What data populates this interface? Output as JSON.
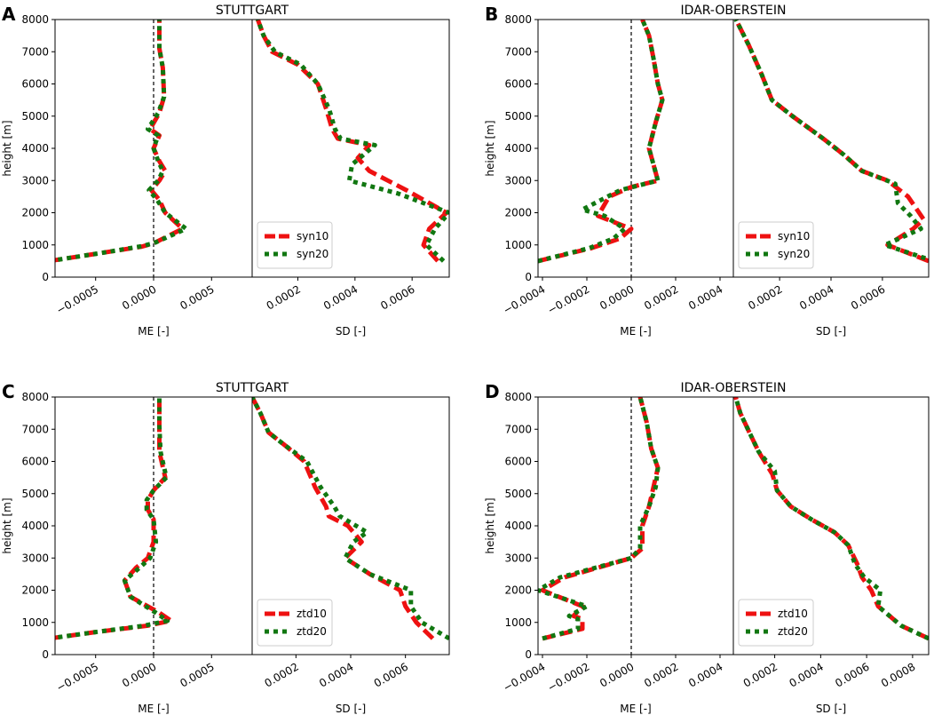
{
  "chart_data": [
    {
      "panel_letter": "A",
      "title": "STUTTGART",
      "ylabel": "height [m]",
      "ylim": [
        0,
        8000
      ],
      "yticks": [
        0,
        1000,
        2000,
        3000,
        4000,
        5000,
        6000,
        7000,
        8000
      ],
      "ytick_labels": [
        "0",
        "1000",
        "2000",
        "3000",
        "4000",
        "5000",
        "6000",
        "7000",
        "8000"
      ],
      "me": {
        "type": "line",
        "xlabel": "ME [-]",
        "xlim": [
          -0.00085,
          0.00085
        ],
        "xticks": [
          -0.0005,
          0.0,
          0.0005
        ],
        "xtick_labels": [
          "−0.0005",
          "0.0000",
          "0.0005"
        ],
        "zero_line": true,
        "series": [
          {
            "name": "syn10",
            "x": [
              -0.0009,
              -0.00045,
              -0.0001,
              0.0,
              0.00025,
              0.0001,
              5e-05,
              -2e-05,
              5e-05,
              0.0001,
              5e-05,
              0.0,
              5e-05,
              -3e-05,
              5e-05,
              9e-05,
              8e-05,
              5e-05,
              5e-05
            ],
            "y": [
              500,
              750,
              950,
              1050,
              1500,
              2000,
              2400,
              2700,
              3000,
              3300,
              3600,
              4000,
              4400,
              4600,
              5100,
              5600,
              6500,
              7100,
              8000
            ]
          },
          {
            "name": "syn20",
            "x": [
              -0.0009,
              -0.00045,
              -0.00012,
              0.0,
              0.00028,
              0.0001,
              3e-05,
              -4e-05,
              4e-05,
              8e-05,
              4e-05,
              0.0,
              4e-05,
              -5e-05,
              4e-05,
              9e-05,
              8e-05,
              5e-05,
              5e-05
            ],
            "y": [
              500,
              750,
              950,
              1050,
              1500,
              2000,
              2400,
              2700,
              3000,
              3300,
              3600,
              4000,
              4400,
              4600,
              5100,
              5600,
              6500,
              7100,
              8000
            ]
          }
        ]
      },
      "sd": {
        "type": "line",
        "xlabel": "SD [-]",
        "xlim": [
          4e-05,
          0.00073
        ],
        "xticks": [
          0.0002,
          0.0004,
          0.0006
        ],
        "xtick_labels": [
          "0.0002",
          "0.0004",
          "0.0006"
        ],
        "legend": "lower-left",
        "series": [
          {
            "name": "syn10",
            "x": [
              0.00069,
              0.00064,
              0.00066,
              0.00072,
              0.00058,
              0.00045,
              0.00041,
              0.00045,
              0.00034,
              0.00032,
              0.0003,
              0.00027,
              0.0002,
              0.00011,
              8e-05,
              6e-05
            ],
            "y": [
              500,
              1000,
              1500,
              2000,
              2700,
              3300,
              3700,
              4100,
              4300,
              4600,
              5200,
              6000,
              6600,
              7000,
              7500,
              8000
            ]
          },
          {
            "name": "syn20",
            "x": [
              0.00071,
              0.00065,
              0.00068,
              0.00073,
              0.00055,
              0.00038,
              0.00039,
              0.00047,
              0.00035,
              0.00033,
              0.00031,
              0.00027,
              0.00021,
              0.00012,
              8e-05,
              6e-05
            ],
            "y": [
              500,
              1000,
              1500,
              2000,
              2600,
              3000,
              3500,
              4100,
              4300,
              4600,
              5200,
              6000,
              6600,
              7000,
              7500,
              8000
            ]
          }
        ]
      }
    },
    {
      "panel_letter": "B",
      "title": "IDAR-OBERSTEIN",
      "ylabel": "height [m]",
      "ylim": [
        0,
        8000
      ],
      "yticks": [
        0,
        1000,
        2000,
        3000,
        4000,
        5000,
        6000,
        7000,
        8000
      ],
      "ytick_labels": [
        "0",
        "1000",
        "2000",
        "3000",
        "4000",
        "5000",
        "6000",
        "7000",
        "8000"
      ],
      "me": {
        "type": "line",
        "xlabel": "ME [-]",
        "xlim": [
          -0.00042,
          0.00046
        ],
        "xticks": [
          -0.0004,
          -0.0002,
          0.0,
          0.0002,
          0.0004
        ],
        "xtick_labels": [
          "−0.0004",
          "−0.0002",
          "0.0000",
          "0.0002",
          "0.0004"
        ],
        "zero_line": true,
        "series": [
          {
            "name": "syn10",
            "x": [
              -0.00042,
              -0.00018,
              -5e-05,
              0.0,
              -0.00015,
              -0.0001,
              0.0,
              0.00012,
              0.0001,
              8e-05,
              0.00011,
              0.00014,
              0.00012,
              0.0001,
              8e-05,
              5e-05
            ],
            "y": [
              500,
              900,
              1200,
              1500,
              1900,
              2500,
              2800,
              3000,
              3500,
              4000,
              4800,
              5500,
              6000,
              6800,
              7500,
              8000
            ]
          },
          {
            "name": "syn20",
            "x": [
              -0.00042,
              -0.00019,
              -8e-05,
              -3e-05,
              -0.00012,
              -0.00022,
              -5e-05,
              0.00012,
              0.0001,
              8e-05,
              0.00011,
              0.00014,
              0.00012,
              0.0001,
              8e-05,
              5e-05
            ],
            "y": [
              500,
              900,
              1200,
              1500,
              1900,
              2100,
              2700,
              3000,
              3500,
              4000,
              4800,
              5500,
              6000,
              6800,
              7500,
              8000
            ]
          }
        ]
      },
      "sd": {
        "type": "line",
        "xlabel": "SD [-]",
        "xlim": [
          2e-05,
          0.00078
        ],
        "xticks": [
          0.0002,
          0.0004,
          0.0006
        ],
        "xtick_labels": [
          "0.0002",
          "0.0004",
          "0.0006"
        ],
        "legend": "lower-left",
        "series": [
          {
            "name": "syn10",
            "x": [
              0.00078,
              0.00062,
              0.00072,
              0.00076,
              0.0007,
              0.00062,
              0.00052,
              0.00045,
              0.00037,
              0.00025,
              0.00017,
              0.00013,
              8e-05,
              3e-05
            ],
            "y": [
              500,
              1000,
              1500,
              1800,
              2500,
              3000,
              3300,
              3800,
              4300,
              5000,
              5500,
              6300,
              7200,
              8000
            ]
          },
          {
            "name": "syn20",
            "x": [
              0.0008,
              0.00061,
              0.00075,
              0.00071,
              0.00066,
              0.00065,
              0.00052,
              0.00045,
              0.00037,
              0.00025,
              0.00017,
              0.00013,
              8e-05,
              3e-05
            ],
            "y": [
              500,
              1000,
              1500,
              1900,
              2300,
              2900,
              3300,
              3800,
              4300,
              5000,
              5500,
              6300,
              7200,
              8000
            ]
          }
        ]
      }
    },
    {
      "panel_letter": "C",
      "title": "STUTTGART",
      "ylabel": "height [m]",
      "ylim": [
        0,
        8000
      ],
      "yticks": [
        0,
        1000,
        2000,
        3000,
        4000,
        5000,
        6000,
        7000,
        8000
      ],
      "ytick_labels": [
        "0",
        "1000",
        "2000",
        "3000",
        "4000",
        "5000",
        "6000",
        "7000",
        "8000"
      ],
      "me": {
        "type": "line",
        "xlabel": "ME [-]",
        "xlim": [
          -0.00085,
          0.00085
        ],
        "xticks": [
          -0.0005,
          0.0,
          0.0005
        ],
        "xtick_labels": [
          "−0.0005",
          "0.0000",
          "0.0005"
        ],
        "zero_line": true,
        "series": [
          {
            "name": "ztd10",
            "x": [
              -0.0009,
              -0.0005,
              -5e-05,
              0.00015,
              5e-05,
              -0.0002,
              -0.00025,
              -0.00015,
              -5e-05,
              0.0,
              0.0,
              -5e-05,
              -5e-05,
              0.0,
              0.0001,
              5e-05,
              5e-05,
              5e-05
            ],
            "y": [
              500,
              700,
              900,
              1050,
              1300,
              1800,
              2300,
              2700,
              3000,
              3500,
              4200,
              4500,
              4800,
              5100,
              5500,
              6300,
              7100,
              8000
            ]
          },
          {
            "name": "ztd20",
            "x": [
              -0.0009,
              -0.0005,
              -8e-05,
              0.00012,
              2e-05,
              -0.0002,
              -0.00025,
              -0.00012,
              -3e-05,
              2e-05,
              0.0,
              -6e-05,
              -6e-05,
              0.0,
              0.00011,
              6e-05,
              5e-05,
              5e-05
            ],
            "y": [
              500,
              700,
              900,
              1050,
              1300,
              1800,
              2300,
              2700,
              3000,
              3500,
              4200,
              4500,
              4800,
              5100,
              5500,
              6300,
              7100,
              8000
            ]
          }
        ]
      },
      "sd": {
        "type": "line",
        "xlabel": "SD [-]",
        "xlim": [
          4e-05,
          0.00076
        ],
        "xticks": [
          0.0002,
          0.0004,
          0.0006
        ],
        "xtick_labels": [
          "0.0002",
          "0.0004",
          "0.0006"
        ],
        "legend": "lower-left",
        "series": [
          {
            "name": "ztd10",
            "x": [
              0.0007,
              0.00064,
              0.0006,
              0.00058,
              0.00047,
              0.00038,
              0.00044,
              0.00039,
              0.00032,
              0.00031,
              0.00027,
              0.00023,
              0.00016,
              0.0001,
              7e-05,
              4e-05
            ],
            "y": [
              500,
              1000,
              1500,
              2000,
              2500,
              3000,
              3500,
              4000,
              4300,
              4600,
              5200,
              6000,
              6500,
              6900,
              7500,
              8000
            ]
          },
          {
            "name": "ztd20",
            "x": [
              0.00076,
              0.00066,
              0.00062,
              0.00062,
              0.00047,
              0.00038,
              0.00041,
              0.00046,
              0.00036,
              0.00034,
              0.00029,
              0.00024,
              0.00016,
              0.0001,
              7e-05,
              4e-05
            ],
            "y": [
              500,
              1000,
              1500,
              2000,
              2500,
              3000,
              3500,
              3800,
              4300,
              4600,
              5200,
              6000,
              6500,
              6900,
              7500,
              8000
            ]
          }
        ]
      }
    },
    {
      "panel_letter": "D",
      "title": "IDAR-OBERSTEIN",
      "ylabel": "height [m]",
      "ylim": [
        0,
        8000
      ],
      "yticks": [
        0,
        1000,
        2000,
        3000,
        4000,
        5000,
        6000,
        7000,
        8000
      ],
      "ytick_labels": [
        "0",
        "1000",
        "2000",
        "3000",
        "4000",
        "5000",
        "6000",
        "7000",
        "8000"
      ],
      "me": {
        "type": "line",
        "xlabel": "ME [-]",
        "xlim": [
          -0.00042,
          0.00046
        ],
        "xticks": [
          -0.0004,
          -0.0002,
          0.0,
          0.0002,
          0.0004
        ],
        "xtick_labels": [
          "−0.0004",
          "−0.0002",
          "0.0000",
          "0.0002",
          "0.0004"
        ],
        "zero_line": true,
        "series": [
          {
            "name": "ztd10",
            "x": [
              -0.0004,
              -0.00022,
              -0.00022,
              -0.00026,
              -0.00022,
              -0.0004,
              -0.0003,
              -0.00015,
              0.0,
              5e-05,
              5e-05,
              8e-05,
              0.0001,
              0.00012,
              9e-05,
              7e-05,
              4e-05
            ],
            "y": [
              500,
              800,
              1100,
              1200,
              1500,
              2000,
              2400,
              2700,
              3000,
              3300,
              4000,
              4600,
              5200,
              5800,
              6400,
              7200,
              8000
            ]
          },
          {
            "name": "ztd20",
            "x": [
              -0.0004,
              -0.00024,
              -0.00024,
              -0.00028,
              -0.0002,
              -0.00042,
              -0.00032,
              -0.00016,
              0.0,
              4e-05,
              4e-05,
              8e-05,
              0.00011,
              0.00012,
              9e-05,
              7e-05,
              4e-05
            ],
            "y": [
              500,
              800,
              1100,
              1200,
              1500,
              2000,
              2400,
              2700,
              3000,
              3300,
              4000,
              4600,
              5200,
              5800,
              6400,
              7200,
              8000
            ]
          }
        ]
      },
      "sd": {
        "type": "line",
        "xlabel": "SD [-]",
        "xlim": [
          2e-05,
          0.00087
        ],
        "xticks": [
          0.0002,
          0.0004,
          0.0006,
          0.0008
        ],
        "xtick_labels": [
          "0.0002",
          "0.0004",
          "0.0006",
          "0.0008"
        ],
        "legend": "lower-left",
        "series": [
          {
            "name": "ztd10",
            "x": [
              0.00087,
              0.00075,
              0.00065,
              0.00062,
              0.00058,
              0.00056,
              0.00052,
              0.00046,
              0.00036,
              0.00027,
              0.00021,
              0.00019,
              0.00013,
              9e-05,
              5e-05,
              3e-05
            ],
            "y": [
              500,
              900,
              1500,
              2000,
              2400,
              2800,
              3400,
              3800,
              4200,
              4600,
              5100,
              5600,
              6300,
              6900,
              7500,
              8000
            ]
          },
          {
            "name": "ztd20",
            "x": [
              0.00087,
              0.00075,
              0.00065,
              0.00066,
              0.00059,
              0.00055,
              0.00052,
              0.00046,
              0.00036,
              0.00027,
              0.00021,
              0.0002,
              0.00013,
              9e-05,
              5e-05,
              3e-05
            ],
            "y": [
              500,
              900,
              1500,
              2000,
              2400,
              2800,
              3400,
              3800,
              4200,
              4600,
              5100,
              5700,
              6300,
              6900,
              7500,
              8000
            ]
          }
        ]
      }
    }
  ],
  "colors": {
    "series_1": "#ee1111",
    "series_2": "#117711",
    "axes": "#000000"
  }
}
